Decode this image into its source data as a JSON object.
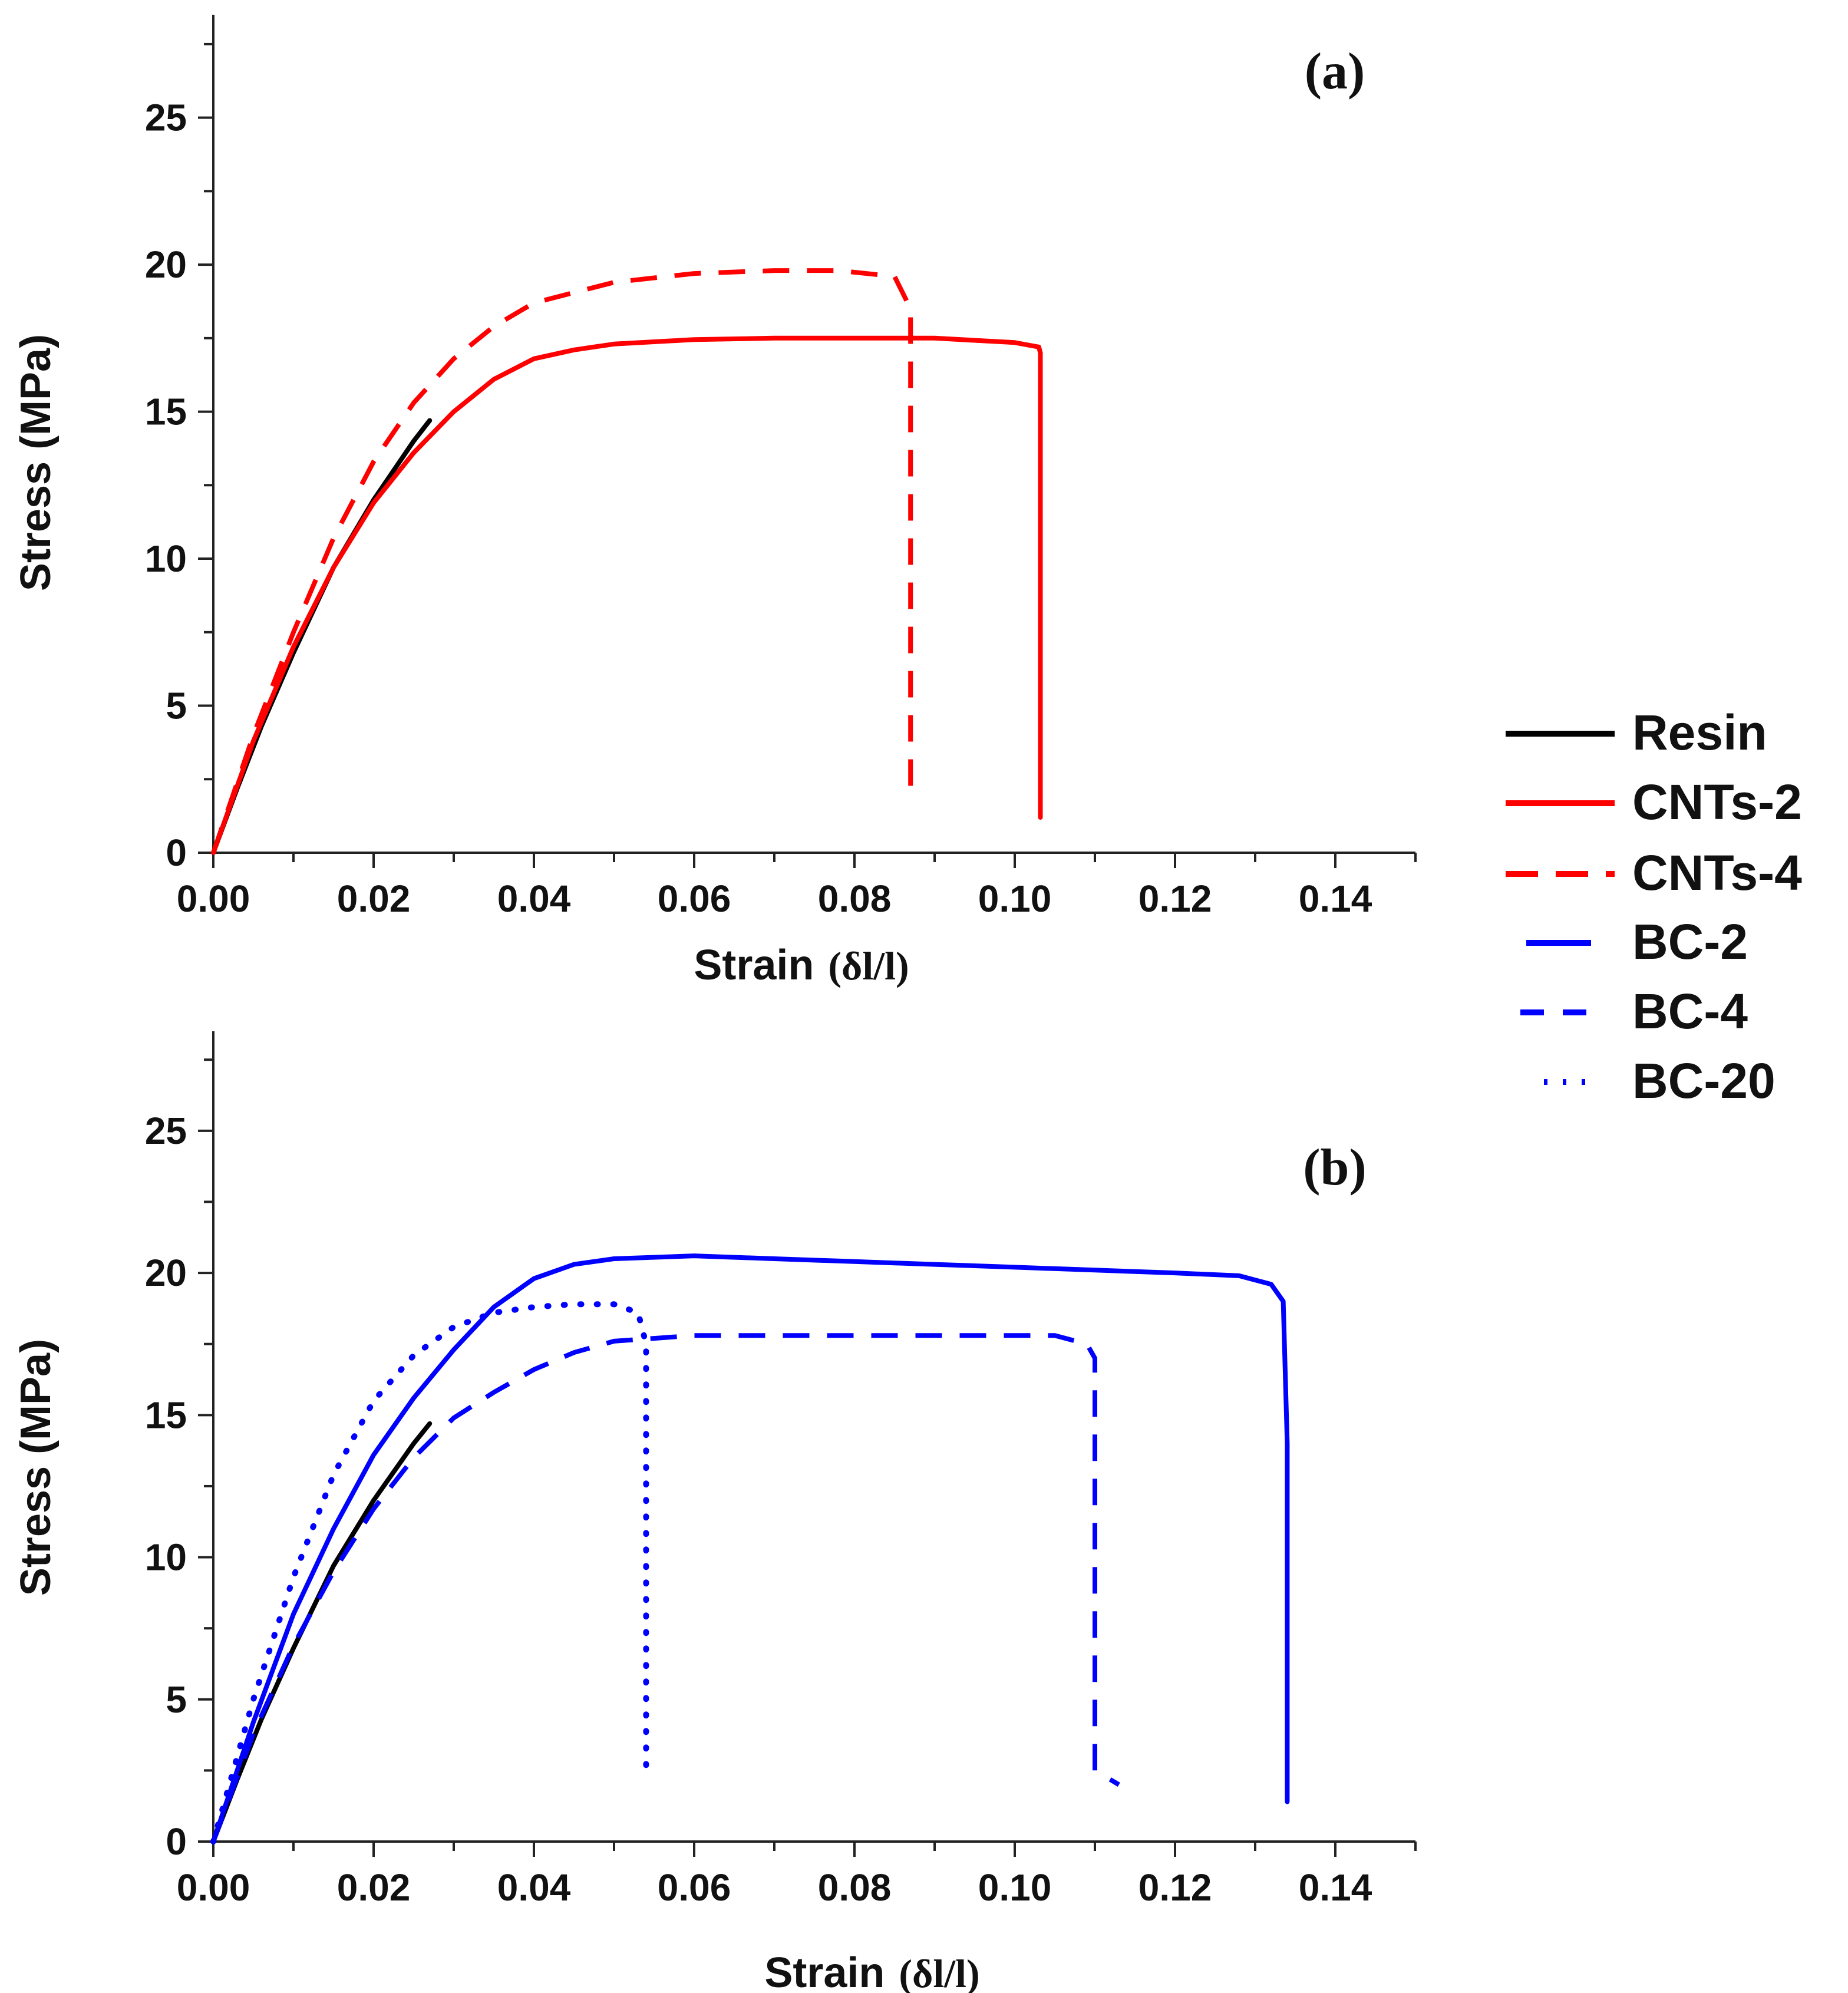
{
  "legend": {
    "items": [
      {
        "name": "Resin",
        "color": "#000000",
        "style": "solid"
      },
      {
        "name": "CNTs-2",
        "color": "#ff0000",
        "style": "solid"
      },
      {
        "name": "CNTs-4",
        "color": "#ff0000",
        "style": "dashed"
      },
      {
        "name": "BC-2",
        "color": "#0000ff",
        "style": "solid"
      },
      {
        "name": "BC-4",
        "color": "#0000ff",
        "style": "dashed"
      },
      {
        "name": "BC-20",
        "color": "#0000ff",
        "style": "dotted"
      }
    ]
  },
  "chart_data": [
    {
      "type": "line",
      "panel_label": "(a)",
      "xlabel": "Strain",
      "xlabel_unit": "(δl/l)",
      "ylabel": "Stress (MPa)",
      "xlim": [
        0,
        0.15
      ],
      "ylim": [
        0,
        28.5
      ],
      "xticks": [
        "0.00",
        "0.02",
        "0.04",
        "0.06",
        "0.08",
        "0.10",
        "0.12",
        "0.14"
      ],
      "yticks": [
        "0",
        "5",
        "10",
        "15",
        "20",
        "25"
      ],
      "series": [
        {
          "name": "Resin",
          "color": "#000000",
          "style": "solid",
          "x": [
            0,
            0.003,
            0.006,
            0.01,
            0.015,
            0.02,
            0.025,
            0.027
          ],
          "y": [
            0,
            2.2,
            4.3,
            6.8,
            9.7,
            12.0,
            14.0,
            14.7
          ]
        },
        {
          "name": "CNTs-2",
          "color": "#ff0000",
          "style": "solid",
          "x": [
            0,
            0.005,
            0.01,
            0.015,
            0.02,
            0.025,
            0.03,
            0.035,
            0.04,
            0.045,
            0.05,
            0.06,
            0.07,
            0.08,
            0.09,
            0.1,
            0.103,
            0.1032,
            0.1032
          ],
          "y": [
            0,
            3.8,
            7.0,
            9.7,
            11.9,
            13.6,
            15.0,
            16.1,
            16.8,
            17.1,
            17.3,
            17.45,
            17.5,
            17.5,
            17.5,
            17.35,
            17.2,
            17.0,
            1.2
          ]
        },
        {
          "name": "CNTs-4",
          "color": "#ff0000",
          "style": "dashed",
          "x": [
            0,
            0.005,
            0.01,
            0.015,
            0.02,
            0.025,
            0.03,
            0.035,
            0.04,
            0.05,
            0.06,
            0.07,
            0.078,
            0.085,
            0.087,
            0.087
          ],
          "y": [
            0,
            4.0,
            7.5,
            10.7,
            13.3,
            15.3,
            16.8,
            17.9,
            18.7,
            19.4,
            19.7,
            19.8,
            19.8,
            19.6,
            18.5,
            2.0
          ]
        }
      ]
    },
    {
      "type": "line",
      "panel_label": "(b)",
      "xlabel": "Strain",
      "xlabel_unit": "(δl/l)",
      "ylabel": "Stress (MPa)",
      "xlim": [
        0,
        0.15
      ],
      "ylim": [
        0,
        28.5
      ],
      "xticks": [
        "0.00",
        "0.02",
        "0.04",
        "0.06",
        "0.08",
        "0.10",
        "0.12",
        "0.14"
      ],
      "yticks": [
        "0",
        "5",
        "10",
        "15",
        "20",
        "25"
      ],
      "series": [
        {
          "name": "Resin",
          "color": "#000000",
          "style": "solid",
          "x": [
            0,
            0.003,
            0.006,
            0.01,
            0.015,
            0.02,
            0.025,
            0.027
          ],
          "y": [
            0,
            2.2,
            4.3,
            6.8,
            9.7,
            12.0,
            14.0,
            14.7
          ]
        },
        {
          "name": "BC-2",
          "color": "#0000ff",
          "style": "solid",
          "x": [
            0,
            0.005,
            0.01,
            0.015,
            0.02,
            0.025,
            0.03,
            0.035,
            0.04,
            0.045,
            0.05,
            0.06,
            0.07,
            0.08,
            0.09,
            0.1,
            0.11,
            0.12,
            0.128,
            0.132,
            0.1335,
            0.134,
            0.134
          ],
          "y": [
            0,
            4.2,
            8.0,
            11.0,
            13.6,
            15.6,
            17.3,
            18.8,
            19.8,
            20.3,
            20.5,
            20.6,
            20.5,
            20.4,
            20.3,
            20.2,
            20.1,
            20.0,
            19.9,
            19.6,
            19.0,
            14.0,
            1.4
          ]
        },
        {
          "name": "BC-4",
          "color": "#0000ff",
          "style": "dashed",
          "x": [
            0,
            0.005,
            0.01,
            0.015,
            0.02,
            0.025,
            0.03,
            0.035,
            0.04,
            0.045,
            0.05,
            0.055,
            0.06,
            0.07,
            0.08,
            0.09,
            0.1,
            0.105,
            0.109,
            0.11,
            0.11,
            0.113
          ],
          "y": [
            0,
            3.8,
            6.9,
            9.5,
            11.7,
            13.5,
            14.9,
            15.8,
            16.6,
            17.2,
            17.6,
            17.7,
            17.8,
            17.8,
            17.8,
            17.8,
            17.8,
            17.8,
            17.5,
            17.0,
            2.5,
            2.0
          ]
        },
        {
          "name": "BC-20",
          "color": "#0000ff",
          "style": "dotted",
          "x": [
            0,
            0.005,
            0.01,
            0.015,
            0.02,
            0.025,
            0.03,
            0.035,
            0.04,
            0.045,
            0.05,
            0.053,
            0.054,
            0.054
          ],
          "y": [
            0,
            5.0,
            9.3,
            12.9,
            15.5,
            17.1,
            18.1,
            18.6,
            18.8,
            18.9,
            18.9,
            18.6,
            17.5,
            2.5
          ]
        }
      ]
    }
  ]
}
